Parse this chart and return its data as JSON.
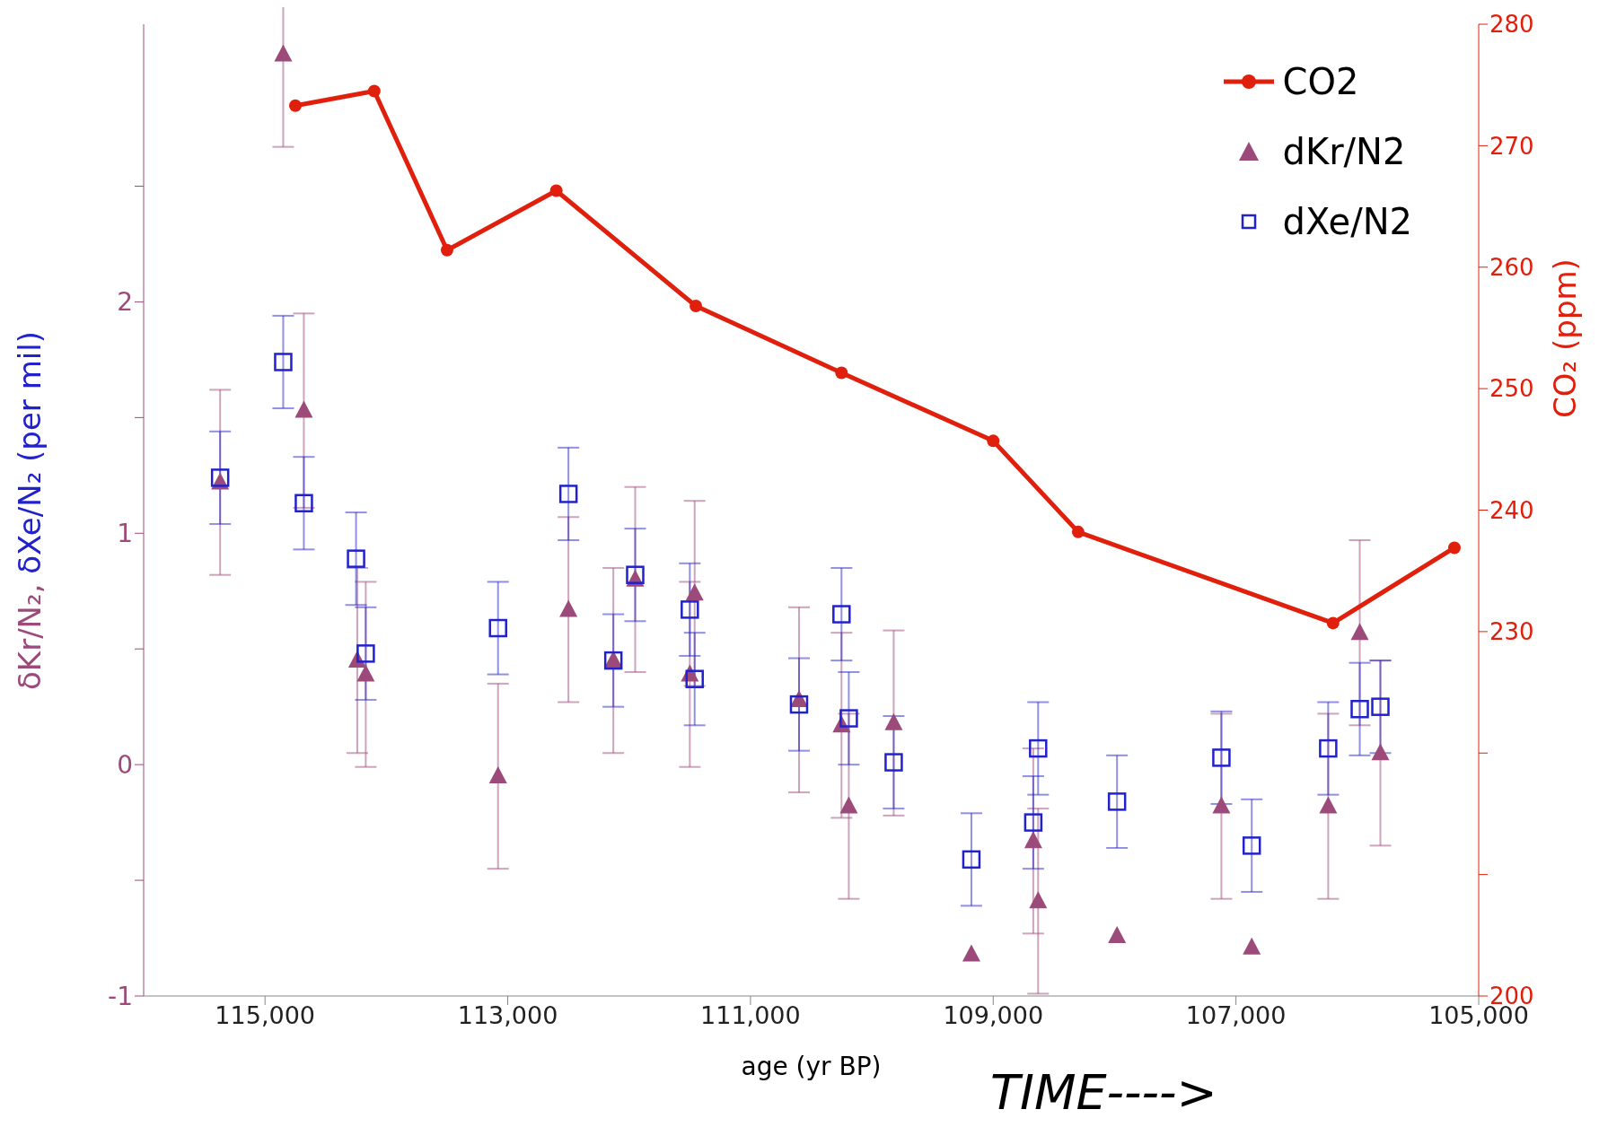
{
  "chart_data": {
    "type": "scatter",
    "xlabel": "age (yr BP)",
    "ylabel": "δKr/N₂, δXe/N₂ (per mil)",
    "y2label": "CO₂ (ppm)",
    "annotations": [
      "TIME---->"
    ],
    "xlim": [
      116000,
      105000
    ],
    "xticks": [
      {
        "value": 115000,
        "label": "115,000"
      },
      {
        "value": 113000,
        "label": "113,000"
      },
      {
        "value": 111000,
        "label": "111,000"
      },
      {
        "value": 109000,
        "label": "109,000"
      },
      {
        "value": 107000,
        "label": "107,000"
      },
      {
        "value": 105000,
        "label": "105,000"
      }
    ],
    "ylim": [
      -1,
      3.2
    ],
    "yticks": [
      -1,
      {
        "value": -0.5,
        "label": null
      },
      0,
      {
        "value": 0.5,
        "label": null
      },
      1,
      {
        "value": 1.5,
        "label": null
      },
      2,
      {
        "value": 2.5,
        "label": null
      }
    ],
    "y2lim": [
      200,
      280
    ],
    "y2ticks": [
      200,
      {
        "value": 210,
        "label": null
      },
      {
        "value": 220,
        "label": null
      },
      230,
      240,
      250,
      260,
      270,
      280
    ],
    "legend": "top right",
    "grid": false,
    "series": [
      {
        "name": "CO2",
        "type": "line",
        "axis": "y2",
        "marker": "circle",
        "color": "#e0200c",
        "x": [
          114750,
          114100,
          113500,
          112600,
          111450,
          110250,
          109000,
          108300,
          106200,
          105200
        ],
        "values": [
          273.3,
          274.5,
          261.4,
          266.3,
          256.8,
          251.3,
          245.7,
          238.2,
          230.7,
          236.9
        ]
      },
      {
        "name": "dKr/N2",
        "axis": "y",
        "marker": "triangle",
        "color": "#9c4a7a",
        "x": [
          115370,
          114850,
          114680,
          114240,
          114170,
          113080,
          112500,
          112130,
          111950,
          111500,
          111460,
          110600,
          110250,
          110190,
          109820,
          109180,
          108670,
          108630,
          107980,
          107120,
          106870,
          106240,
          105980,
          105810
        ],
        "values": [
          1.22,
          3.07,
          1.53,
          0.45,
          0.39,
          -0.05,
          0.67,
          0.45,
          0.8,
          0.39,
          0.74,
          0.28,
          0.17,
          -0.18,
          0.18,
          -0.82,
          -0.33,
          -0.59,
          -0.74,
          -0.18,
          -0.79,
          -0.18,
          0.57,
          0.05
        ],
        "errors": [
          0.4,
          0.4,
          0.42,
          0.4,
          0.4,
          0.4,
          0.4,
          0.4,
          0.4,
          0.4,
          0.4,
          0.4,
          0.4,
          0.4,
          0.4,
          null,
          0.4,
          0.4,
          null,
          0.4,
          null,
          0.4,
          0.4,
          0.4
        ]
      },
      {
        "name": "dXe/N2",
        "axis": "y",
        "marker": "square",
        "color": "#2222cc",
        "x": [
          115370,
          114850,
          114680,
          114250,
          114170,
          113080,
          112500,
          112130,
          111950,
          111500,
          111460,
          110600,
          110250,
          110190,
          109820,
          109180,
          108670,
          108630,
          107980,
          107120,
          106870,
          106240,
          105980,
          105810
        ],
        "values": [
          1.24,
          1.74,
          1.13,
          0.89,
          0.48,
          0.59,
          1.17,
          0.45,
          0.82,
          0.67,
          0.37,
          0.26,
          0.65,
          0.2,
          0.01,
          -0.41,
          -0.25,
          0.07,
          -0.16,
          0.03,
          -0.35,
          0.07,
          0.24,
          0.25
        ],
        "errors": [
          0.2,
          0.2,
          0.2,
          0.2,
          0.2,
          0.2,
          0.2,
          0.2,
          0.2,
          0.2,
          0.2,
          0.2,
          0.2,
          0.2,
          0.2,
          0.2,
          0.2,
          0.2,
          0.2,
          0.2,
          0.2,
          0.2,
          0.2,
          0.2
        ]
      }
    ]
  }
}
